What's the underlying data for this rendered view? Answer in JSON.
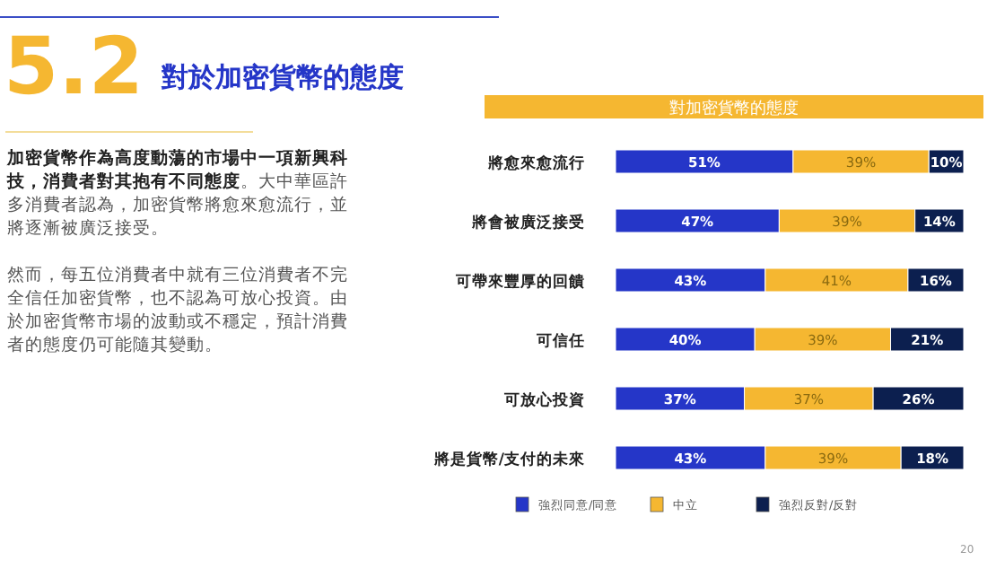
{
  "chart_data": {
    "type": "bar",
    "orientation": "horizontal",
    "stacked": true,
    "title": "對加密貨幣的態度",
    "annotations": [
      "5.2",
      "對於加密貨幣的態度",
      "**加密貨幣作為高度動蕩的市場中一項新興科技，消費者對其抱有不同態度**。大中華區許多消費者認為，加密貨幣將愈來愈流行，並將逐漸被廣泛接受。",
      "然而，每五位消費者中就有三位消費者不完全信任加密貨幣，也不認為可放心投資。由於加密貨幣市場的波動或不穩定，預計消費者的態度仍可能隨其變動。",
      "20"
    ],
    "categories": [
      "將愈來愈流行",
      "將會被廣泛接受",
      "可帶來豐厚的回饋",
      "可信任",
      "可放心投資",
      "將是貨幣/支付的未來"
    ],
    "series": [
      {
        "name": "強烈同意/同意",
        "color": "#2536c8",
        "values": [
          51,
          47,
          43,
          40,
          37,
          43
        ],
        "value_labels": [
          "51%",
          "47%",
          "43%",
          "40%",
          "37%",
          "43%"
        ]
      },
      {
        "name": "中立",
        "color": "#f5b731",
        "values": [
          39,
          39,
          41,
          39,
          37,
          39
        ],
        "value_labels": [
          "39%",
          "39%",
          "41%",
          "39%",
          "37%",
          "39%"
        ]
      },
      {
        "name": "強烈反對/反對",
        "color": "#0c1f4f",
        "values": [
          10,
          14,
          16,
          21,
          26,
          18
        ],
        "value_labels": [
          "10%",
          "14%",
          "16%",
          "21%",
          "26%",
          "18%"
        ]
      }
    ],
    "xlim": [
      0,
      100
    ],
    "tick_labels": "y",
    "legend": "bottom"
  }
}
